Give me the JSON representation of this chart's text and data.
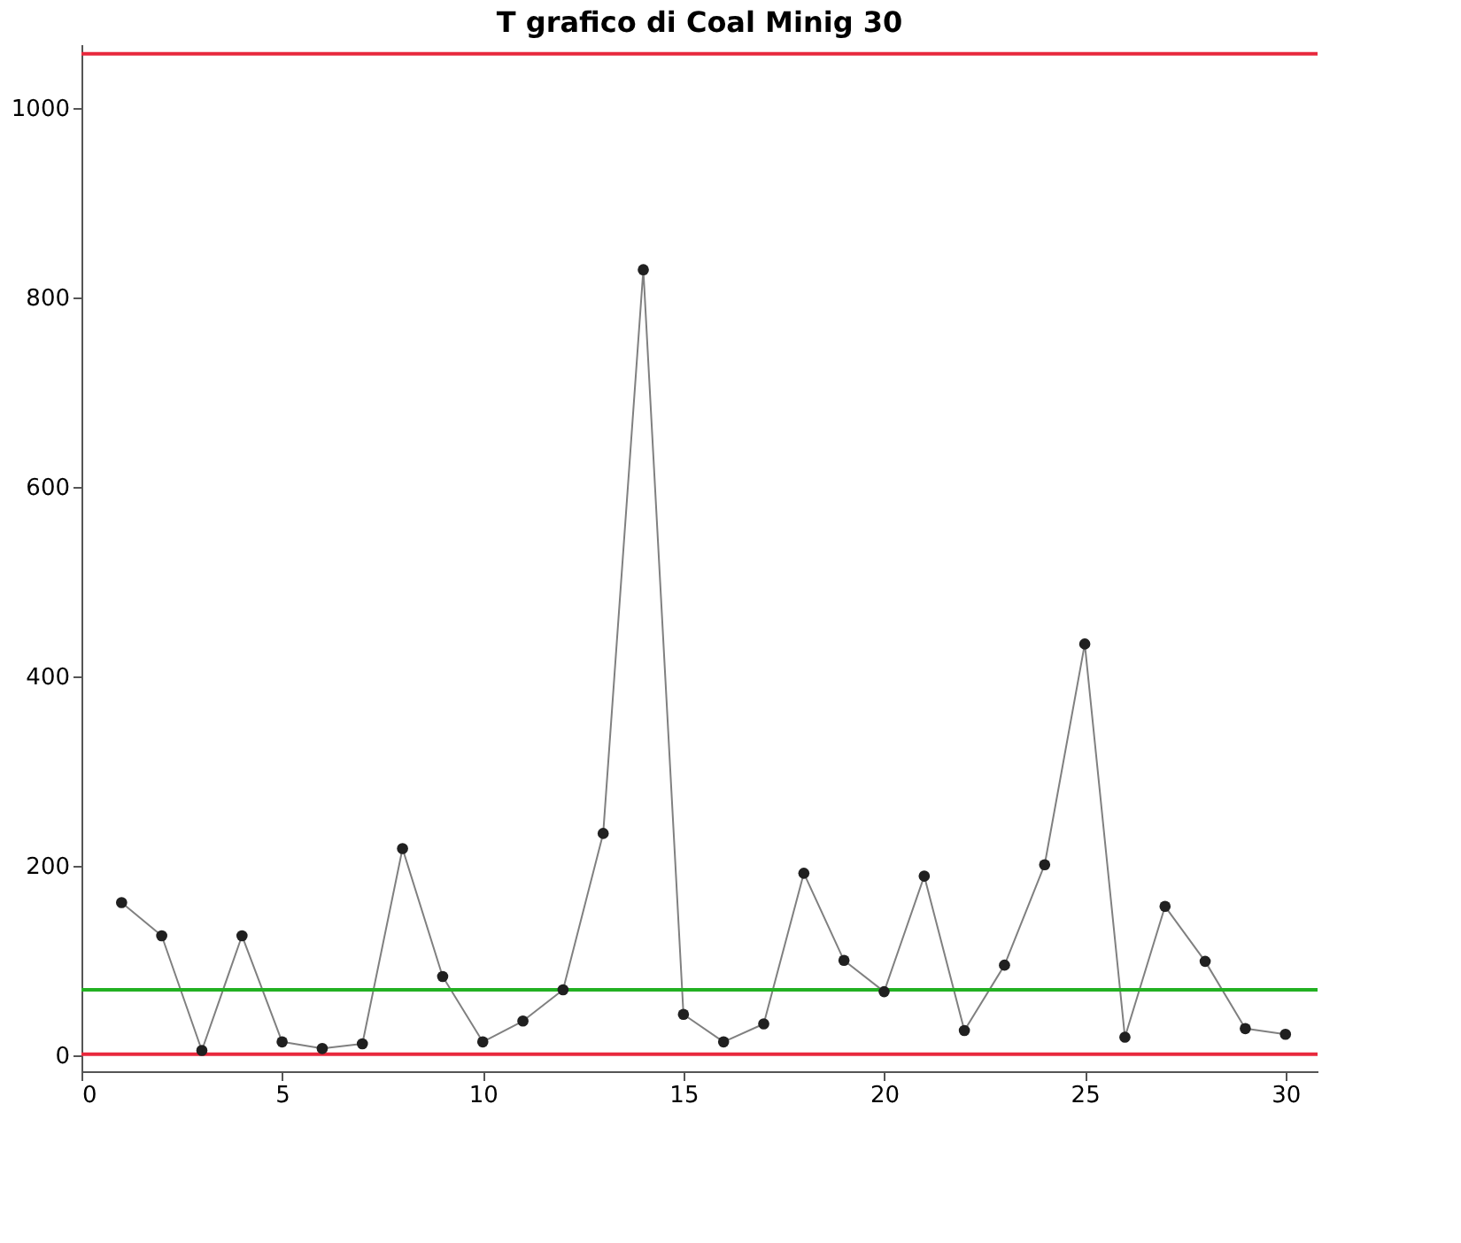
{
  "chart_data": {
    "type": "line",
    "title": "T grafico di Coal Minig 30",
    "x": [
      1,
      2,
      3,
      4,
      5,
      6,
      7,
      8,
      9,
      10,
      11,
      12,
      13,
      14,
      15,
      16,
      17,
      18,
      19,
      20,
      21,
      22,
      23,
      24,
      25,
      26,
      27,
      28,
      29,
      30
    ],
    "series": [
      {
        "color": "#202020",
        "values": [
          161,
          126,
          5,
          126,
          14,
          7,
          12,
          218,
          83,
          14,
          36,
          69,
          234,
          829,
          43,
          14,
          33,
          192,
          100,
          67,
          189,
          26,
          95,
          201,
          434,
          19,
          157,
          99,
          28,
          22
        ]
      }
    ],
    "xlim": [
      0,
      30.8
    ],
    "xticks": [
      0,
      5,
      10,
      15,
      20,
      25,
      30
    ],
    "ylim": [
      -17,
      1067
    ],
    "yticks": [
      0,
      200,
      400,
      600,
      800,
      1000
    ],
    "ref_lines": [
      {
        "axis": "y",
        "value": 1057,
        "color": "#e8283c"
      },
      {
        "axis": "y",
        "value": 69,
        "color": "#22b022"
      },
      {
        "axis": "y",
        "value": 1,
        "color": "#e8283c"
      }
    ],
    "marker": "circle",
    "line_style": "solid",
    "grid": false
  }
}
